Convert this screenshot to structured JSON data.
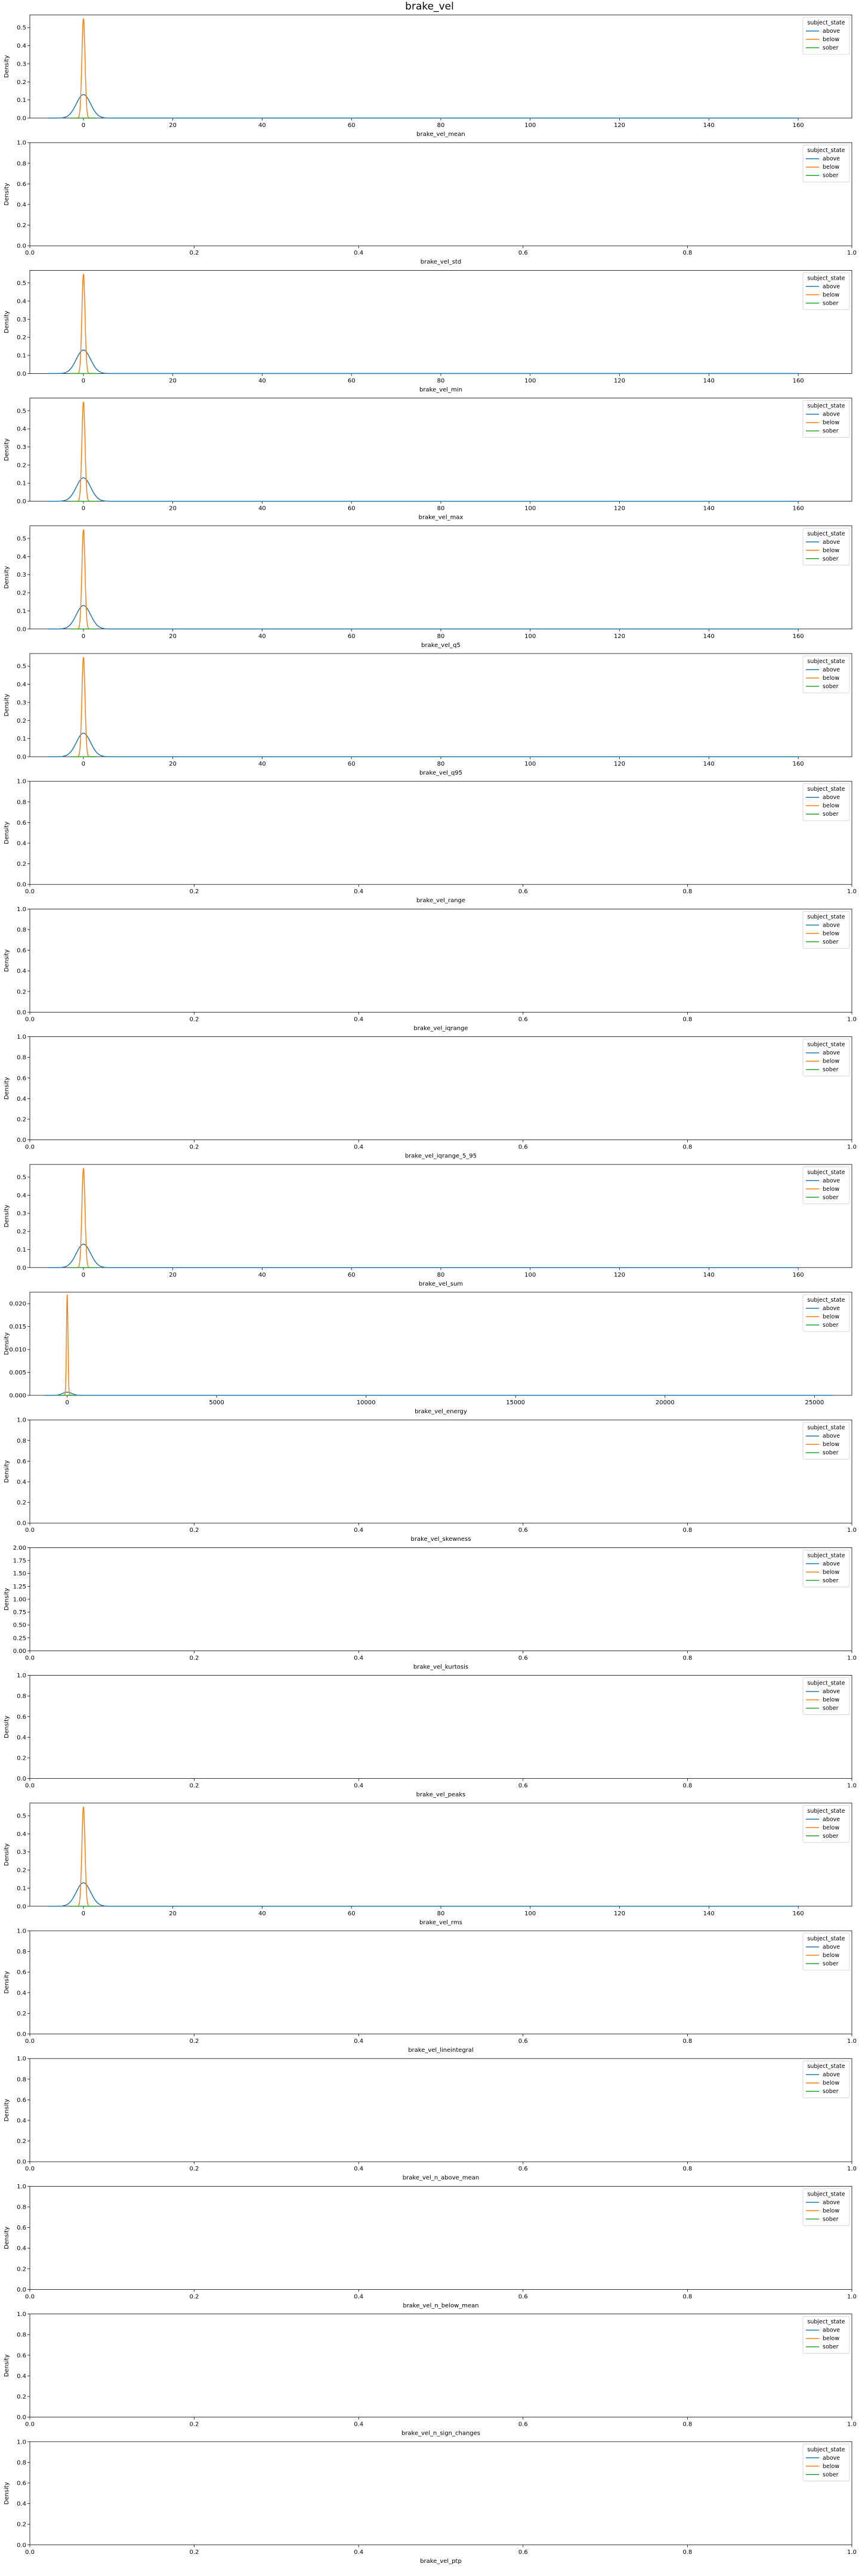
{
  "figure": {
    "title": "brake_vel"
  },
  "legend_title": "subject_state",
  "legend_entries": [
    "above",
    "below",
    "sober"
  ],
  "colors": {
    "above": "#1f77b4",
    "below": "#ff7f0e",
    "sober": "#2ca02c"
  },
  "chart_data": [
    {
      "type": "line",
      "xlabel": "brake_vel_mean",
      "ylabel": "Density",
      "xlim": [
        -12,
        172
      ],
      "ylim": [
        0,
        0.57
      ],
      "xticks": [
        0,
        20,
        40,
        60,
        80,
        100,
        120,
        140,
        160
      ],
      "yticks": [
        0,
        0.1,
        0.2,
        0.3,
        0.4,
        0.5
      ],
      "yticks_text": [
        "0.0",
        "0.1",
        "0.2",
        "0.3",
        "0.4",
        "0.5"
      ],
      "legend": "top-right",
      "grid": false,
      "series": [
        {
          "name": "above",
          "peak_x": 0,
          "peak_y": 0.13,
          "sigma": 1.6,
          "tail_x": 160
        },
        {
          "name": "below",
          "peak_x": 0,
          "peak_y": 0.55,
          "sigma": 0.35
        },
        {
          "name": "sober",
          "peak_x": 0,
          "peak_y": 0.0,
          "sigma": 1.0
        }
      ]
    },
    {
      "type": "line",
      "xlabel": "brake_vel_std",
      "ylabel": "Density",
      "xlim": [
        0,
        1
      ],
      "ylim": [
        0,
        1
      ],
      "xticks": [
        0,
        0.2,
        0.4,
        0.6,
        0.8,
        1.0
      ],
      "xticks_text": [
        "0.0",
        "0.2",
        "0.4",
        "0.6",
        "0.8",
        "1.0"
      ],
      "yticks": [
        0,
        0.2,
        0.4,
        0.6,
        0.8,
        1.0
      ],
      "yticks_text": [
        "0.0",
        "0.2",
        "0.4",
        "0.6",
        "0.8",
        "1.0"
      ],
      "legend": "top-right",
      "grid": false,
      "series": []
    },
    {
      "type": "line",
      "xlabel": "brake_vel_min",
      "ylabel": "Density",
      "xlim": [
        -12,
        172
      ],
      "ylim": [
        0,
        0.57
      ],
      "xticks": [
        0,
        20,
        40,
        60,
        80,
        100,
        120,
        140,
        160
      ],
      "yticks": [
        0,
        0.1,
        0.2,
        0.3,
        0.4,
        0.5
      ],
      "yticks_text": [
        "0.0",
        "0.1",
        "0.2",
        "0.3",
        "0.4",
        "0.5"
      ],
      "legend": "top-right",
      "grid": false,
      "series": [
        {
          "name": "above",
          "peak_x": 0,
          "peak_y": 0.13,
          "sigma": 1.6,
          "tail_x": 160
        },
        {
          "name": "below",
          "peak_x": 0,
          "peak_y": 0.55,
          "sigma": 0.35
        },
        {
          "name": "sober",
          "peak_x": 0,
          "peak_y": 0.0,
          "sigma": 1.0
        }
      ]
    },
    {
      "type": "line",
      "xlabel": "brake_vel_max",
      "ylabel": "Density",
      "xlim": [
        -12,
        172
      ],
      "ylim": [
        0,
        0.57
      ],
      "xticks": [
        0,
        20,
        40,
        60,
        80,
        100,
        120,
        140,
        160
      ],
      "yticks": [
        0,
        0.1,
        0.2,
        0.3,
        0.4,
        0.5
      ],
      "yticks_text": [
        "0.0",
        "0.1",
        "0.2",
        "0.3",
        "0.4",
        "0.5"
      ],
      "legend": "top-right",
      "grid": false,
      "series": [
        {
          "name": "above",
          "peak_x": 0,
          "peak_y": 0.13,
          "sigma": 1.6,
          "tail_x": 160
        },
        {
          "name": "below",
          "peak_x": 0,
          "peak_y": 0.55,
          "sigma": 0.35
        },
        {
          "name": "sober",
          "peak_x": 0,
          "peak_y": 0.0,
          "sigma": 1.0
        }
      ]
    },
    {
      "type": "line",
      "xlabel": "brake_vel_q5",
      "ylabel": "Density",
      "xlim": [
        -12,
        172
      ],
      "ylim": [
        0,
        0.57
      ],
      "xticks": [
        0,
        20,
        40,
        60,
        80,
        100,
        120,
        140,
        160
      ],
      "yticks": [
        0,
        0.1,
        0.2,
        0.3,
        0.4,
        0.5
      ],
      "yticks_text": [
        "0.0",
        "0.1",
        "0.2",
        "0.3",
        "0.4",
        "0.5"
      ],
      "legend": "top-right",
      "grid": false,
      "series": [
        {
          "name": "above",
          "peak_x": 0,
          "peak_y": 0.13,
          "sigma": 1.6,
          "tail_x": 160
        },
        {
          "name": "below",
          "peak_x": 0,
          "peak_y": 0.55,
          "sigma": 0.35
        },
        {
          "name": "sober",
          "peak_x": 0,
          "peak_y": 0.0,
          "sigma": 1.0
        }
      ]
    },
    {
      "type": "line",
      "xlabel": "brake_vel_q95",
      "ylabel": "Density",
      "xlim": [
        -12,
        172
      ],
      "ylim": [
        0,
        0.57
      ],
      "xticks": [
        0,
        20,
        40,
        60,
        80,
        100,
        120,
        140,
        160
      ],
      "yticks": [
        0,
        0.1,
        0.2,
        0.3,
        0.4,
        0.5
      ],
      "yticks_text": [
        "0.0",
        "0.1",
        "0.2",
        "0.3",
        "0.4",
        "0.5"
      ],
      "legend": "top-right",
      "grid": false,
      "series": [
        {
          "name": "above",
          "peak_x": 0,
          "peak_y": 0.13,
          "sigma": 1.6,
          "tail_x": 160
        },
        {
          "name": "below",
          "peak_x": 0,
          "peak_y": 0.55,
          "sigma": 0.35
        },
        {
          "name": "sober",
          "peak_x": 0,
          "peak_y": 0.0,
          "sigma": 1.0
        }
      ]
    },
    {
      "type": "line",
      "xlabel": "brake_vel_range",
      "ylabel": "Density",
      "xlim": [
        0,
        1
      ],
      "ylim": [
        0,
        1
      ],
      "xticks": [
        0,
        0.2,
        0.4,
        0.6,
        0.8,
        1.0
      ],
      "xticks_text": [
        "0.0",
        "0.2",
        "0.4",
        "0.6",
        "0.8",
        "1.0"
      ],
      "yticks": [
        0,
        0.2,
        0.4,
        0.6,
        0.8,
        1.0
      ],
      "yticks_text": [
        "0.0",
        "0.2",
        "0.4",
        "0.6",
        "0.8",
        "1.0"
      ],
      "legend": "top-right",
      "grid": false,
      "series": []
    },
    {
      "type": "line",
      "xlabel": "brake_vel_iqrange",
      "ylabel": "Density",
      "xlim": [
        0,
        1
      ],
      "ylim": [
        0,
        1
      ],
      "xticks": [
        0,
        0.2,
        0.4,
        0.6,
        0.8,
        1.0
      ],
      "xticks_text": [
        "0.0",
        "0.2",
        "0.4",
        "0.6",
        "0.8",
        "1.0"
      ],
      "yticks": [
        0,
        0.2,
        0.4,
        0.6,
        0.8,
        1.0
      ],
      "yticks_text": [
        "0.0",
        "0.2",
        "0.4",
        "0.6",
        "0.8",
        "1.0"
      ],
      "legend": "top-right",
      "grid": false,
      "series": []
    },
    {
      "type": "line",
      "xlabel": "brake_vel_iqrange_5_95",
      "ylabel": "Density",
      "xlim": [
        0,
        1
      ],
      "ylim": [
        0,
        1
      ],
      "xticks": [
        0,
        0.2,
        0.4,
        0.6,
        0.8,
        1.0
      ],
      "xticks_text": [
        "0.0",
        "0.2",
        "0.4",
        "0.6",
        "0.8",
        "1.0"
      ],
      "yticks": [
        0,
        0.2,
        0.4,
        0.6,
        0.8,
        1.0
      ],
      "yticks_text": [
        "0.0",
        "0.2",
        "0.4",
        "0.6",
        "0.8",
        "1.0"
      ],
      "legend": "top-right",
      "grid": false,
      "series": []
    },
    {
      "type": "line",
      "xlabel": "brake_vel_sum",
      "ylabel": "Density",
      "xlim": [
        -12,
        172
      ],
      "ylim": [
        0,
        0.57
      ],
      "xticks": [
        0,
        20,
        40,
        60,
        80,
        100,
        120,
        140,
        160
      ],
      "yticks": [
        0,
        0.1,
        0.2,
        0.3,
        0.4,
        0.5
      ],
      "yticks_text": [
        "0.0",
        "0.1",
        "0.2",
        "0.3",
        "0.4",
        "0.5"
      ],
      "legend": "top-right",
      "grid": false,
      "series": [
        {
          "name": "above",
          "peak_x": 0,
          "peak_y": 0.13,
          "sigma": 1.6,
          "tail_x": 160
        },
        {
          "name": "below",
          "peak_x": 0,
          "peak_y": 0.55,
          "sigma": 0.35
        },
        {
          "name": "sober",
          "peak_x": 0,
          "peak_y": 0.0,
          "sigma": 1.0
        }
      ]
    },
    {
      "type": "line",
      "xlabel": "brake_vel_energy",
      "ylabel": "Density",
      "xlim": [
        -1250,
        26250
      ],
      "ylim": [
        0,
        0.0225
      ],
      "xticks": [
        0,
        5000,
        10000,
        15000,
        20000,
        25000
      ],
      "yticks": [
        0,
        0.005,
        0.01,
        0.015,
        0.02
      ],
      "yticks_text": [
        "0.000",
        "0.005",
        "0.010",
        "0.015",
        "0.020"
      ],
      "legend": "top-right",
      "grid": false,
      "series": [
        {
          "name": "above",
          "peak_x": 0,
          "peak_y": 0.0007,
          "sigma": 150,
          "tail_x": 25600
        },
        {
          "name": "below",
          "peak_x": 0,
          "peak_y": 0.022,
          "sigma": 25
        },
        {
          "name": "sober",
          "peak_x": 0,
          "peak_y": 0.0,
          "sigma": 100
        }
      ]
    },
    {
      "type": "line",
      "xlabel": "brake_vel_skewness",
      "ylabel": "Density",
      "xlim": [
        0,
        1
      ],
      "ylim": [
        0,
        1
      ],
      "xticks": [
        0,
        0.2,
        0.4,
        0.6,
        0.8,
        1.0
      ],
      "xticks_text": [
        "0.0",
        "0.2",
        "0.4",
        "0.6",
        "0.8",
        "1.0"
      ],
      "yticks": [
        0,
        0.2,
        0.4,
        0.6,
        0.8,
        1.0
      ],
      "yticks_text": [
        "0.0",
        "0.2",
        "0.4",
        "0.6",
        "0.8",
        "1.0"
      ],
      "legend": "top-right",
      "grid": false,
      "series": []
    },
    {
      "type": "line",
      "xlabel": "brake_vel_kurtosis",
      "ylabel": "Density",
      "xlim": [
        0,
        1
      ],
      "ylim": [
        0,
        2
      ],
      "xticks": [
        0,
        0.2,
        0.4,
        0.6,
        0.8,
        1.0
      ],
      "xticks_text": [
        "0.0",
        "0.2",
        "0.4",
        "0.6",
        "0.8",
        "1.0"
      ],
      "yticks": [
        0,
        0.25,
        0.5,
        0.75,
        1.0,
        1.25,
        1.5,
        1.75,
        2.0
      ],
      "yticks_text": [
        "0.00",
        "0.25",
        "0.50",
        "0.75",
        "1.00",
        "1.25",
        "1.50",
        "1.75",
        "2.00"
      ],
      "legend": "top-right",
      "grid": false,
      "series": []
    },
    {
      "type": "line",
      "xlabel": "brake_vel_peaks",
      "ylabel": "Density",
      "xlim": [
        0,
        1
      ],
      "ylim": [
        0,
        1
      ],
      "xticks": [
        0,
        0.2,
        0.4,
        0.6,
        0.8,
        1.0
      ],
      "xticks_text": [
        "0.0",
        "0.2",
        "0.4",
        "0.6",
        "0.8",
        "1.0"
      ],
      "yticks": [
        0,
        0.2,
        0.4,
        0.6,
        0.8,
        1.0
      ],
      "yticks_text": [
        "0.0",
        "0.2",
        "0.4",
        "0.6",
        "0.8",
        "1.0"
      ],
      "legend": "top-right",
      "grid": false,
      "series": []
    },
    {
      "type": "line",
      "xlabel": "brake_vel_rms",
      "ylabel": "Density",
      "xlim": [
        -12,
        172
      ],
      "ylim": [
        0,
        0.57
      ],
      "xticks": [
        0,
        20,
        40,
        60,
        80,
        100,
        120,
        140,
        160
      ],
      "yticks": [
        0,
        0.1,
        0.2,
        0.3,
        0.4,
        0.5
      ],
      "yticks_text": [
        "0.0",
        "0.1",
        "0.2",
        "0.3",
        "0.4",
        "0.5"
      ],
      "legend": "top-right",
      "grid": false,
      "series": [
        {
          "name": "above",
          "peak_x": 0,
          "peak_y": 0.13,
          "sigma": 1.6,
          "tail_x": 160
        },
        {
          "name": "below",
          "peak_x": 0,
          "peak_y": 0.55,
          "sigma": 0.35
        },
        {
          "name": "sober",
          "peak_x": 0,
          "peak_y": 0.0,
          "sigma": 1.0
        }
      ]
    },
    {
      "type": "line",
      "xlabel": "brake_vel_lineintegral",
      "ylabel": "Density",
      "xlim": [
        0,
        1
      ],
      "ylim": [
        0,
        1
      ],
      "xticks": [
        0,
        0.2,
        0.4,
        0.6,
        0.8,
        1.0
      ],
      "xticks_text": [
        "0.0",
        "0.2",
        "0.4",
        "0.6",
        "0.8",
        "1.0"
      ],
      "yticks": [
        0,
        0.2,
        0.4,
        0.6,
        0.8,
        1.0
      ],
      "yticks_text": [
        "0.0",
        "0.2",
        "0.4",
        "0.6",
        "0.8",
        "1.0"
      ],
      "legend": "top-right",
      "grid": false,
      "series": []
    },
    {
      "type": "line",
      "xlabel": "brake_vel_n_above_mean",
      "ylabel": "Density",
      "xlim": [
        0,
        1
      ],
      "ylim": [
        0,
        1
      ],
      "xticks": [
        0,
        0.2,
        0.4,
        0.6,
        0.8,
        1.0
      ],
      "xticks_text": [
        "0.0",
        "0.2",
        "0.4",
        "0.6",
        "0.8",
        "1.0"
      ],
      "yticks": [
        0,
        0.2,
        0.4,
        0.6,
        0.8,
        1.0
      ],
      "yticks_text": [
        "0.0",
        "0.2",
        "0.4",
        "0.6",
        "0.8",
        "1.0"
      ],
      "legend": "top-right",
      "grid": false,
      "series": []
    },
    {
      "type": "line",
      "xlabel": "brake_vel_n_below_mean",
      "ylabel": "Density",
      "xlim": [
        0,
        1
      ],
      "ylim": [
        0,
        1
      ],
      "xticks": [
        0,
        0.2,
        0.4,
        0.6,
        0.8,
        1.0
      ],
      "xticks_text": [
        "0.0",
        "0.2",
        "0.4",
        "0.6",
        "0.8",
        "1.0"
      ],
      "yticks": [
        0,
        0.2,
        0.4,
        0.6,
        0.8,
        1.0
      ],
      "yticks_text": [
        "0.0",
        "0.2",
        "0.4",
        "0.6",
        "0.8",
        "1.0"
      ],
      "legend": "top-right",
      "grid": false,
      "series": []
    },
    {
      "type": "line",
      "xlabel": "brake_vel_n_sign_changes",
      "ylabel": "Density",
      "xlim": [
        0,
        1
      ],
      "ylim": [
        0,
        1
      ],
      "xticks": [
        0,
        0.2,
        0.4,
        0.6,
        0.8,
        1.0
      ],
      "xticks_text": [
        "0.0",
        "0.2",
        "0.4",
        "0.6",
        "0.8",
        "1.0"
      ],
      "yticks": [
        0,
        0.2,
        0.4,
        0.6,
        0.8,
        1.0
      ],
      "yticks_text": [
        "0.0",
        "0.2",
        "0.4",
        "0.6",
        "0.8",
        "1.0"
      ],
      "legend": "top-right",
      "grid": false,
      "series": []
    },
    {
      "type": "line",
      "xlabel": "brake_vel_ptp",
      "ylabel": "Density",
      "xlim": [
        0,
        1
      ],
      "ylim": [
        0,
        1
      ],
      "xticks": [
        0,
        0.2,
        0.4,
        0.6,
        0.8,
        1.0
      ],
      "xticks_text": [
        "0.0",
        "0.2",
        "0.4",
        "0.6",
        "0.8",
        "1.0"
      ],
      "yticks": [
        0,
        0.2,
        0.4,
        0.6,
        0.8,
        1.0
      ],
      "yticks_text": [
        "0.0",
        "0.2",
        "0.4",
        "0.6",
        "0.8",
        "1.0"
      ],
      "legend": "top-right",
      "grid": false,
      "series": []
    }
  ]
}
